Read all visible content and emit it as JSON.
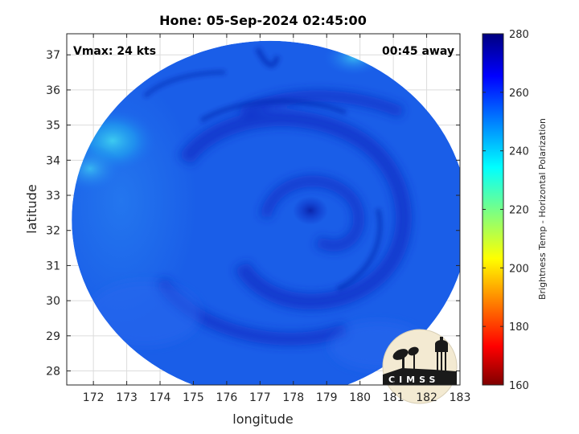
{
  "title": "Hone: 05-Sep-2024 02:45:00",
  "annotations": {
    "vmax": "Vmax: 24 kts",
    "away": "00:45 away"
  },
  "axes": {
    "xlabel": "longitude",
    "ylabel": "latitude",
    "xticks": [
      "172",
      "173",
      "174",
      "175",
      "176",
      "177",
      "178",
      "179",
      "180",
      "181",
      "182",
      "183"
    ],
    "yticks": [
      "28",
      "29",
      "30",
      "31",
      "32",
      "33",
      "34",
      "35",
      "36",
      "37"
    ]
  },
  "colorbar": {
    "label": "Brightness Temp - Horizontal Polarization",
    "ticks": [
      "160",
      "180",
      "200",
      "220",
      "240",
      "260",
      "280"
    ],
    "range": [
      160,
      280
    ],
    "colormap": "jet"
  },
  "logo": {
    "text": "CIMSS"
  },
  "map": {
    "lon_range": [
      171.2,
      183.0
    ],
    "lat_range": [
      27.6,
      37.6
    ],
    "swath_center": [
      177.3,
      32.3
    ],
    "swath_radius_lon": 5.95,
    "swath_radius_lat": 5.1,
    "storm_center": [
      178.5,
      32.5
    ],
    "background_tb": 256,
    "cold_patch_tb": 244,
    "core_tb": 268
  }
}
